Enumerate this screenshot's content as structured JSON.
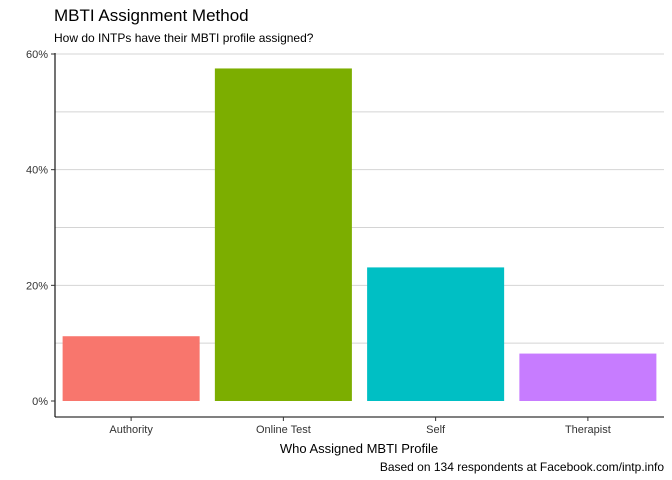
{
  "chart_data": {
    "type": "bar",
    "title": "MBTI Assignment Method",
    "subtitle": "How do INTPs have their MBTI profile assigned?",
    "xlabel": "Who Assigned MBTI Profile",
    "ylabel": "",
    "caption": "Based on 134 respondents at Facebook.com/intp.info",
    "categories": [
      "Authority",
      "Online Test",
      "Self",
      "Therapist"
    ],
    "values": [
      11.2,
      57.5,
      23.1,
      8.2
    ],
    "colors": [
      "#F8766D",
      "#7CAE00",
      "#00BFC4",
      "#C77CFF"
    ],
    "ylim": [
      0,
      60
    ],
    "yticks": [
      0,
      20,
      40,
      60
    ],
    "ytick_labels": [
      "0%",
      "20%",
      "40%",
      "60%"
    ],
    "grid": true,
    "legend": "none"
  }
}
